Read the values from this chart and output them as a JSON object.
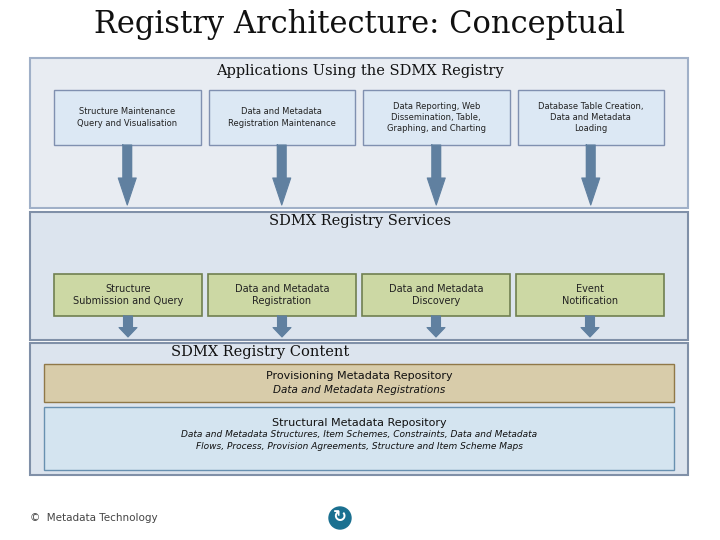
{
  "title": "Registry Architecture: Conceptual",
  "title_fontsize": 22,
  "bg_color": "#ffffff",
  "s1_fill": "#e8ecf2",
  "s1_edge": "#a0b0c8",
  "s2_fill": "#dce4ee",
  "s2_edge": "#8090a8",
  "s3_fill": "#dce4ee",
  "s3_edge": "#8090a8",
  "app_fill": "#dce8f4",
  "app_edge": "#8090b0",
  "svc_fill": "#ccd8a4",
  "svc_edge": "#7090508",
  "prov_fill": "#d8ccaa",
  "prov_edge": "#907848",
  "struct_fill": "#d4e4f0",
  "struct_edge": "#6890b0",
  "arrow_color": "#6080a0",
  "section1_title": "Applications Using the SDMX Registry",
  "section2_title": "SDMX Registry Services",
  "section3_title": "SDMX Registry Content",
  "app_boxes": [
    "Structure Maintenance\nQuery and Visualisation",
    "Data and Metadata\nRegistration Maintenance",
    "Data Reporting, Web\nDissemination, Table,\nGraphing, and Charting",
    "Database Table Creation,\nData and Metadata\nLoading"
  ],
  "service_boxes": [
    "Structure\nSubmission and Query",
    "Data and Metadata\nRegistration",
    "Data and Metadata\nDiscovery",
    "Event\nNotification"
  ],
  "content_box1_title": "Provisioning Metadata Repository",
  "content_box1_sub": "Data and Metadata Registrations",
  "content_box2_title": "Structural Metadata Repository",
  "content_box2_sub": "Data and Metadata Structures, Item Schemes, Constraints, Data and Metadata\nFlows, Process, Provision Agreements, Structure and Item Scheme Maps",
  "footer_text": "©  Metadata Technology"
}
